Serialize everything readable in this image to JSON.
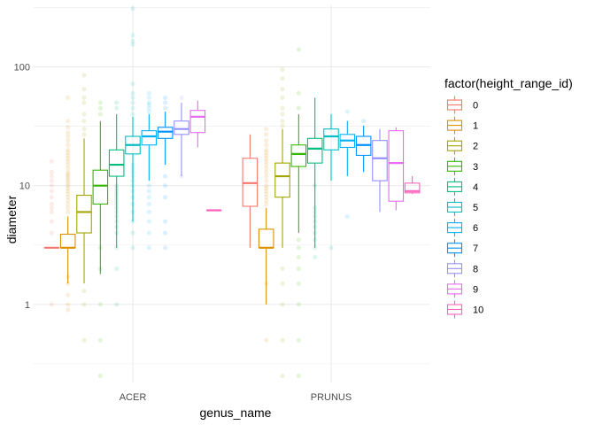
{
  "chart_data": {
    "type": "boxplot",
    "xlabel": "genus_name",
    "ylabel": "diameter",
    "y_scale": "log10",
    "ylim": [
      0.22,
      330
    ],
    "y_ticks": [
      {
        "value": 1,
        "label": "1"
      },
      {
        "value": 10,
        "label": "10"
      },
      {
        "value": 100,
        "label": "100"
      }
    ],
    "categories": [
      "ACER",
      "PRUNUS"
    ],
    "grid": true,
    "legend": {
      "title": "factor(height_range_id)",
      "placement": "right",
      "entries": [
        "0",
        "1",
        "2",
        "3",
        "4",
        "5",
        "6",
        "7",
        "8",
        "9",
        "10"
      ]
    },
    "series_colors": [
      "#F8766D",
      "#D89000",
      "#A3A500",
      "#39B600",
      "#00BF7D",
      "#00BFC4",
      "#00B0F6",
      "#0091FF",
      "#9590FF",
      "#E76BF3",
      "#FF62BC"
    ],
    "groups": [
      {
        "category": "ACER",
        "boxes": [
          {
            "series": "0",
            "min": 3,
            "q1": 3,
            "median": 3,
            "q3": 3,
            "max": 3,
            "outliers": [
              1,
              4,
              5,
              6,
              6.5,
              7,
              8,
              9,
              10,
              11,
              12,
              13,
              16
            ]
          },
          {
            "series": "1",
            "min": 1.5,
            "q1": 3,
            "median": 3,
            "q3": 3.9,
            "max": 5.5,
            "outliers": [
              0.9,
              1,
              1.2,
              1.5,
              1.7,
              6,
              6.5,
              7,
              7.5,
              8,
              8.5,
              9,
              9.5,
              10,
              10.5,
              11,
              11.5,
              12,
              12.5,
              13,
              14,
              15,
              16,
              17,
              18,
              19,
              20,
              22,
              24,
              26,
              28,
              31,
              35,
              55
            ]
          },
          {
            "series": "2",
            "min": 1.5,
            "q1": 4,
            "median": 6,
            "q3": 8.3,
            "max": 25,
            "outliers": [
              0.5,
              1,
              1.3,
              27,
              30,
              35,
              40,
              50,
              55,
              65,
              85
            ]
          },
          {
            "series": "3",
            "min": 1.8,
            "q1": 7,
            "median": 10,
            "q3": 13.5,
            "max": 35,
            "outliers": [
              0.25,
              0.5,
              1,
              2,
              3,
              40,
              45,
              50
            ]
          },
          {
            "series": "4",
            "min": 3,
            "q1": 12,
            "median": 15,
            "q3": 20,
            "max": 40,
            "outliers": [
              1,
              2,
              3,
              4,
              4.5,
              5,
              5.5,
              6,
              6.5,
              7,
              7.5,
              8,
              8.5,
              9,
              9.5,
              10,
              45,
              50
            ]
          },
          {
            "series": "5",
            "min": 5,
            "q1": 18.5,
            "median": 22,
            "q3": 26,
            "max": 38,
            "outliers": [
              3,
              4,
              5,
              6,
              7,
              8,
              9,
              10,
              11,
              12,
              13,
              14,
              15,
              40,
              45,
              50,
              55,
              60,
              72,
              155,
              165,
              185,
              310
            ]
          },
          {
            "series": "6",
            "min": 11,
            "q1": 22,
            "median": 26,
            "q3": 29,
            "max": 40,
            "outliers": [
              3,
              4,
              5,
              6,
              7,
              8,
              9,
              10,
              42,
              45,
              48,
              50,
              55,
              60
            ]
          },
          {
            "series": "7",
            "min": 15,
            "q1": 25,
            "median": 28.5,
            "q3": 31,
            "max": 42,
            "outliers": [
              3,
              4,
              5,
              8,
              10,
              12,
              45,
              50,
              55
            ]
          },
          {
            "series": "8",
            "min": 12,
            "q1": 27,
            "median": 30,
            "q3": 35,
            "max": 50,
            "outliers": [
              12,
              55
            ]
          },
          {
            "series": "9",
            "min": 21,
            "q1": 28,
            "median": 38,
            "q3": 43,
            "max": 52,
            "outliers": []
          },
          {
            "series": "10",
            "min": 6.2,
            "q1": 6.2,
            "median": 6.2,
            "q3": 6.2,
            "max": 6.2,
            "outliers": []
          }
        ]
      },
      {
        "category": "PRUNUS",
        "boxes": [
          {
            "series": "0",
            "min": 3,
            "q1": 6.7,
            "median": 10.5,
            "q3": 17,
            "max": 27,
            "outliers": []
          },
          {
            "series": "1",
            "min": 1,
            "q1": 3,
            "median": 3,
            "q3": 4.3,
            "max": 6.5,
            "outliers": [
              0.5,
              1.5,
              7,
              7.5,
              8,
              8.5,
              9,
              9.5,
              10,
              11,
              12,
              13,
              14,
              15,
              16,
              17,
              18,
              19,
              20,
              22,
              24,
              27,
              30
            ]
          },
          {
            "series": "2",
            "min": 3,
            "q1": 8,
            "median": 12,
            "q3": 15.5,
            "max": 30,
            "outliers": [
              0.25,
              0.5,
              1,
              1.5,
              2,
              32,
              35,
              40,
              45,
              55,
              65,
              80,
              95
            ]
          },
          {
            "series": "3",
            "min": 4,
            "q1": 14.5,
            "median": 18.5,
            "q3": 22,
            "max": 40,
            "outliers": [
              0.25,
              0.5,
              1,
              1.5,
              2,
              2.5,
              3,
              3.5,
              45,
              60,
              140
            ]
          },
          {
            "series": "4",
            "min": 3,
            "q1": 15.5,
            "median": 20.5,
            "q3": 25,
            "max": 55,
            "outliers": [
              2.5,
              3,
              3.5,
              4,
              4.5,
              5,
              5.5,
              6,
              6.5,
              10
            ]
          },
          {
            "series": "5",
            "min": 11,
            "q1": 20,
            "median": 26,
            "q3": 30,
            "max": 40,
            "outliers": [
              3
            ]
          },
          {
            "series": "6",
            "min": 12,
            "q1": 21,
            "median": 24,
            "q3": 27,
            "max": 35,
            "outliers": [
              5.5,
              42
            ]
          },
          {
            "series": "7",
            "min": 13,
            "q1": 18,
            "median": 22,
            "q3": 26,
            "max": 32,
            "outliers": [
              35
            ]
          },
          {
            "series": "8",
            "min": 6,
            "q1": 11,
            "median": 17,
            "q3": 24,
            "max": 30,
            "outliers": []
          },
          {
            "series": "9",
            "min": 6.2,
            "q1": 7.4,
            "median": 15.5,
            "q3": 29,
            "max": 31,
            "outliers": []
          },
          {
            "series": "10",
            "min": 8.5,
            "q1": 8.7,
            "median": 9,
            "q3": 10.5,
            "max": 12,
            "outliers": []
          }
        ]
      }
    ]
  }
}
